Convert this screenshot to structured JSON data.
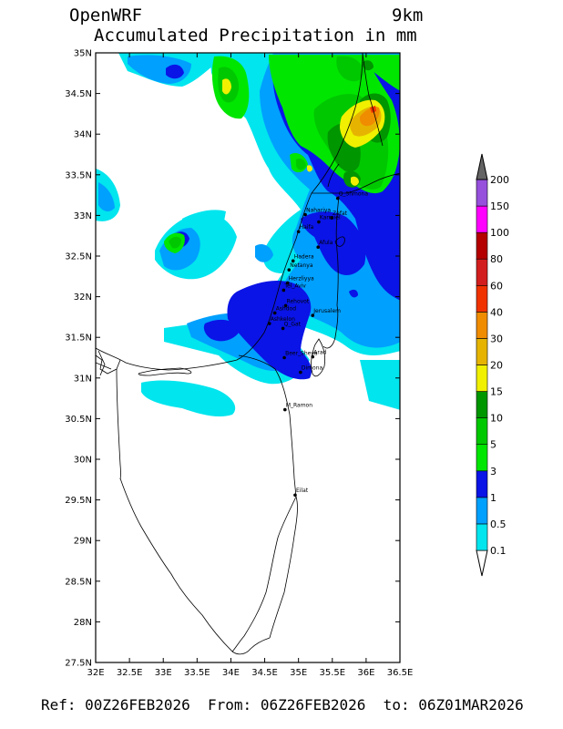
{
  "header": {
    "model": "OpenWRF",
    "resolution": "9km",
    "title": "Accumulated Precipitation in mm"
  },
  "footer": {
    "text": "Ref: 00Z26FEB2026  From: 06Z26FEB2026  to: 06Z01MAR2026"
  },
  "map": {
    "lon_range": [
      32.0,
      36.5
    ],
    "lat_range": [
      27.5,
      35.0
    ],
    "lon_ticks": [
      {
        "value": 32.0,
        "label": "32E"
      },
      {
        "value": 32.5,
        "label": "32.5E"
      },
      {
        "value": 33.0,
        "label": "33E"
      },
      {
        "value": 33.5,
        "label": "33.5E"
      },
      {
        "value": 34.0,
        "label": "34E"
      },
      {
        "value": 34.5,
        "label": "34.5E"
      },
      {
        "value": 35.0,
        "label": "35E"
      },
      {
        "value": 35.5,
        "label": "35.5E"
      },
      {
        "value": 36.0,
        "label": "36E"
      },
      {
        "value": 36.5,
        "label": "36.5E"
      }
    ],
    "lat_ticks": [
      {
        "value": 35.0,
        "label": "35N"
      },
      {
        "value": 34.5,
        "label": "34.5N"
      },
      {
        "value": 34.0,
        "label": "34N"
      },
      {
        "value": 33.5,
        "label": "33.5N"
      },
      {
        "value": 33.0,
        "label": "33N"
      },
      {
        "value": 32.5,
        "label": "32.5N"
      },
      {
        "value": 32.0,
        "label": "32N"
      },
      {
        "value": 31.5,
        "label": "31.5N"
      },
      {
        "value": 31.0,
        "label": "31N"
      },
      {
        "value": 30.5,
        "label": "30.5N"
      },
      {
        "value": 30.0,
        "label": "30N"
      },
      {
        "value": 29.5,
        "label": "29.5N"
      },
      {
        "value": 29.0,
        "label": "29N"
      },
      {
        "value": 28.5,
        "label": "28.5N"
      },
      {
        "value": 28.0,
        "label": "28N"
      },
      {
        "value": 27.5,
        "label": "27.5N"
      }
    ],
    "cities": [
      {
        "name": "Q_Shmona",
        "lon": 35.58,
        "lat": 33.21
      },
      {
        "name": "Nahariya",
        "lon": 35.1,
        "lat": 33.01
      },
      {
        "name": "Zefat",
        "lon": 35.49,
        "lat": 32.97
      },
      {
        "name": "Karmiel",
        "lon": 35.3,
        "lat": 32.92
      },
      {
        "name": "Haifa",
        "lon": 35.0,
        "lat": 32.8
      },
      {
        "name": "Afula",
        "lon": 35.29,
        "lat": 32.61
      },
      {
        "name": "Hadera",
        "lon": 34.92,
        "lat": 32.44
      },
      {
        "name": "Netanya",
        "lon": 34.86,
        "lat": 32.33
      },
      {
        "name": "Herzliyya",
        "lon": 34.84,
        "lat": 32.17
      },
      {
        "name": "Tel_Aviv",
        "lon": 34.78,
        "lat": 32.08
      },
      {
        "name": "Rehovot",
        "lon": 34.81,
        "lat": 31.89
      },
      {
        "name": "Jerusalem",
        "lon": 35.21,
        "lat": 31.77
      },
      {
        "name": "Ashdod",
        "lon": 34.65,
        "lat": 31.8
      },
      {
        "name": "Ashkelon",
        "lon": 34.57,
        "lat": 31.67
      },
      {
        "name": "Q_Gat",
        "lon": 34.77,
        "lat": 31.61
      },
      {
        "name": "Beer_Sheva",
        "lon": 34.79,
        "lat": 31.25
      },
      {
        "name": "Arad",
        "lon": 35.21,
        "lat": 31.26
      },
      {
        "name": "Dimona",
        "lon": 35.03,
        "lat": 31.07
      },
      {
        "name": "M_Ramon",
        "lon": 34.8,
        "lat": 30.61
      },
      {
        "name": "Eilat",
        "lon": 34.95,
        "lat": 29.56
      }
    ]
  },
  "colorbar": {
    "levels": [
      "0.1",
      "0.5",
      "1",
      "3",
      "5",
      "10",
      "15",
      "20",
      "30",
      "40",
      "60",
      "80",
      "100",
      "150",
      "200"
    ],
    "colors": [
      "#00e5ee",
      "#00a0ff",
      "#0a14e6",
      "#00e600",
      "#00c800",
      "#009600",
      "#f0f000",
      "#e6b400",
      "#f08c00",
      "#f03200",
      "#d21e1e",
      "#b40000",
      "#ff00ff",
      "#9650dc",
      "#646464"
    ]
  },
  "precip_areas": [
    {
      "color": "#00e5ee",
      "value": 0.1
    },
    {
      "color": "#00a0ff",
      "value": 0.5
    },
    {
      "color": "#0a14e6",
      "value": 1
    },
    {
      "color": "#00e600",
      "value": 3
    },
    {
      "color": "#00c800",
      "value": 5
    },
    {
      "color": "#009600",
      "value": 10
    },
    {
      "color": "#f0f000",
      "value": 15
    },
    {
      "color": "#e6b400",
      "value": 20
    },
    {
      "color": "#f08c00",
      "value": 30
    },
    {
      "color": "#f03200",
      "value": 40
    }
  ]
}
